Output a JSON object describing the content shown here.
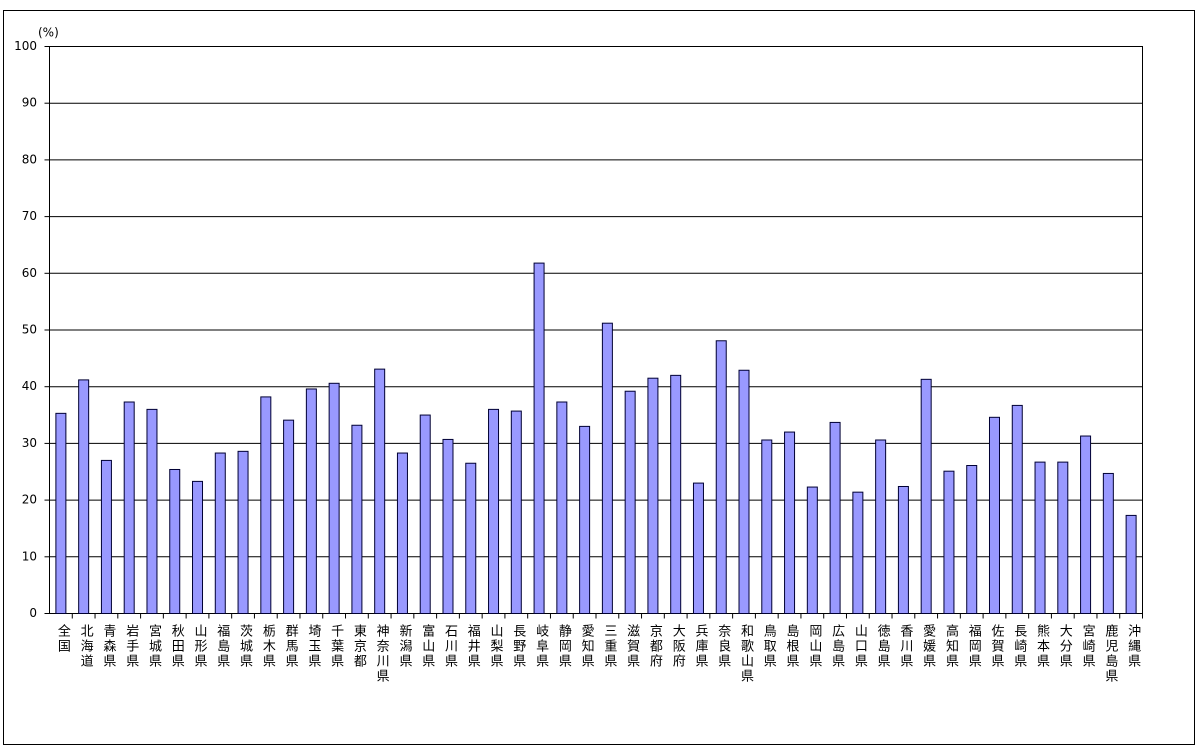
{
  "chart_data": {
    "type": "bar",
    "y_unit": "(%)",
    "categories": [
      "全国",
      "北海道",
      "青森県",
      "岩手県",
      "宮城県",
      "秋田県",
      "山形県",
      "福島県",
      "茨城県",
      "栃木県",
      "群馬県",
      "埼玉県",
      "千葉県",
      "東京都",
      "神奈川県",
      "新潟県",
      "富山県",
      "石川県",
      "福井県",
      "山梨県",
      "長野県",
      "岐阜県",
      "静岡県",
      "愛知県",
      "三重県",
      "滋賀県",
      "京都府",
      "大阪府",
      "兵庫県",
      "奈良県",
      "和歌山県",
      "鳥取県",
      "島根県",
      "岡山県",
      "広島県",
      "山口県",
      "徳島県",
      "香川県",
      "愛媛県",
      "高知県",
      "福岡県",
      "佐賀県",
      "長崎県",
      "熊本県",
      "大分県",
      "宮崎県",
      "鹿児島県",
      "沖縄県"
    ],
    "values": [
      35.3,
      41.2,
      27.0,
      37.3,
      36.0,
      25.4,
      23.3,
      28.3,
      28.6,
      38.2,
      34.1,
      39.6,
      40.6,
      33.2,
      43.1,
      28.3,
      35.0,
      30.7,
      26.5,
      36.0,
      35.7,
      61.8,
      37.3,
      33.0,
      51.2,
      39.2,
      41.5,
      42.0,
      23.0,
      48.1,
      42.9,
      30.6,
      32.0,
      22.3,
      33.7,
      21.4,
      30.6,
      22.4,
      41.3,
      25.1,
      26.1,
      34.6,
      36.7,
      26.7,
      26.7,
      31.3,
      24.7,
      17.3
    ],
    "color": "#9999ff",
    "ylim": [
      0,
      100
    ],
    "yticks": [
      0,
      10,
      20,
      30,
      40,
      50,
      60,
      70,
      80,
      90,
      100
    ],
    "grid": true
  }
}
